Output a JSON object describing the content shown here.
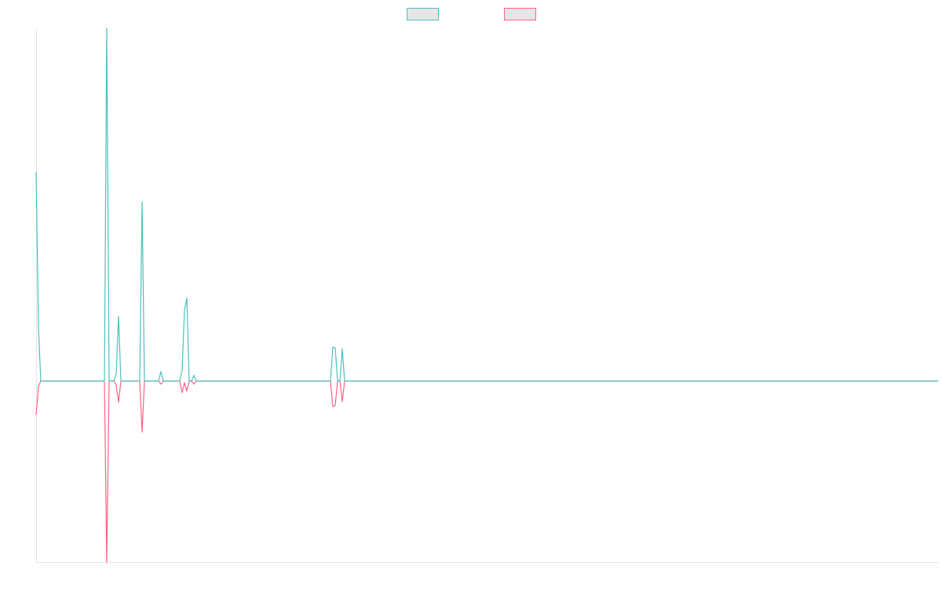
{
  "chart_data": {
    "type": "line",
    "x": [
      0,
      1,
      2,
      29,
      30,
      31,
      33,
      34,
      35,
      36,
      44,
      45,
      46,
      52,
      53,
      54,
      61,
      62,
      63,
      64,
      65,
      66,
      67,
      68,
      125,
      126,
      127,
      128,
      129,
      130,
      131,
      383
    ],
    "xlim": [
      0,
      383
    ],
    "ylim": [
      -51.4,
      100
    ],
    "series": [
      {
        "color": "#4bc0c0",
        "values": [
          59.2,
          15,
          0,
          0,
          100,
          0,
          0,
          2,
          18.3,
          0,
          0,
          50.8,
          0,
          0,
          2.7,
          0,
          0,
          3,
          20,
          23.6,
          0,
          0,
          1.6,
          0,
          0,
          9.6,
          9.4,
          0,
          0,
          9.1,
          0,
          0
        ]
      },
      {
        "color": "#ff6384",
        "values": [
          -9.6,
          -1.5,
          0,
          0,
          -51.4,
          0,
          0,
          -1,
          -6,
          0,
          0,
          -14.5,
          0,
          0,
          -0.9,
          0,
          0,
          -3.3,
          -0.5,
          -2.9,
          0,
          0,
          -0.9,
          0,
          0,
          -7.3,
          -6.9,
          0,
          0,
          -5.8,
          0,
          0
        ]
      }
    ]
  }
}
